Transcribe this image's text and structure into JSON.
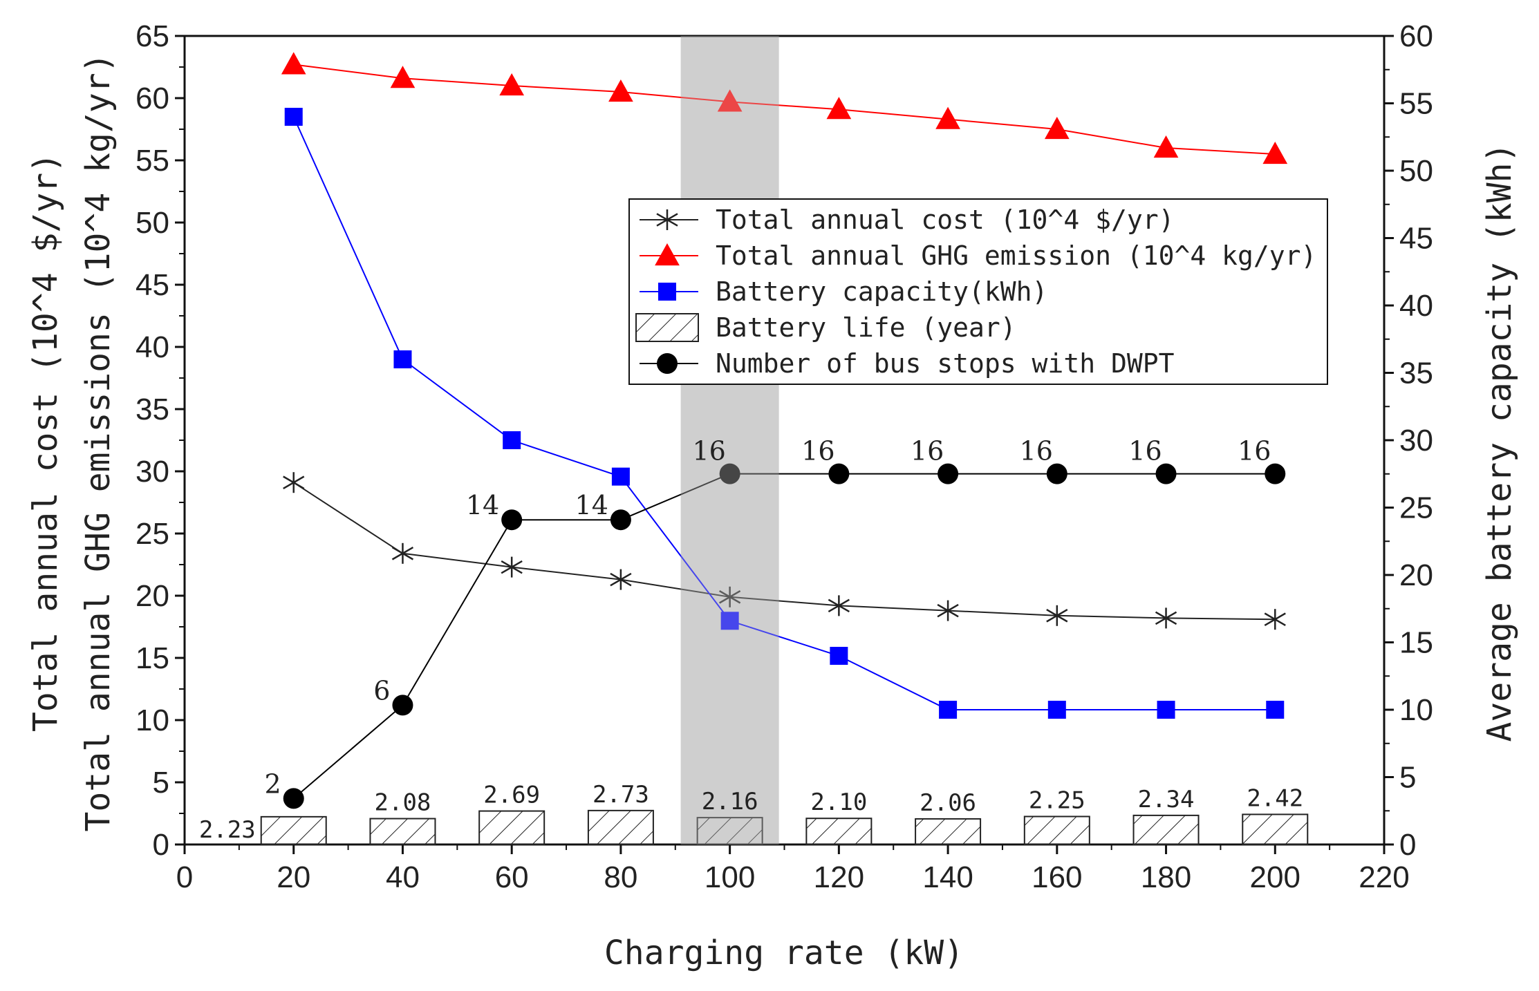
{
  "chart_data": {
    "type": "line",
    "x": [
      20,
      40,
      60,
      80,
      100,
      120,
      140,
      160,
      180,
      200
    ],
    "xlabel": "Charging rate (kW)",
    "xlim": [
      0,
      220
    ],
    "x_ticks": [
      0,
      20,
      40,
      60,
      80,
      100,
      120,
      140,
      160,
      180,
      200,
      220
    ],
    "ylabel_left_1": "Total annual cost (10^4 $/yr)",
    "ylabel_left_2": "Total annual GHG emissions (10^4 kg/yr)",
    "ylim_left": [
      0,
      65
    ],
    "y_ticks_left": [
      0,
      5,
      10,
      15,
      20,
      25,
      30,
      35,
      40,
      45,
      50,
      55,
      60,
      65
    ],
    "ylabel_right": "Average battery capacity (kWh)",
    "ylim_right": [
      0,
      60
    ],
    "y_ticks_right": [
      0,
      5,
      10,
      15,
      20,
      25,
      30,
      35,
      40,
      45,
      50,
      55,
      60
    ],
    "highlight_band": {
      "x_from": 91,
      "x_to": 109,
      "color": "#d3d3d3"
    },
    "series": [
      {
        "id": "cost",
        "name": "Total annual cost (10^4 $/yr)",
        "axis": "left",
        "marker": "asterisk",
        "color": "#222222",
        "values": [
          29.1,
          23.4,
          22.3,
          21.3,
          19.9,
          19.2,
          18.8,
          18.4,
          18.2,
          18.1
        ]
      },
      {
        "id": "ghg",
        "name": "Total annual GHG emission (10^4 kg/yr)",
        "axis": "left",
        "marker": "triangle",
        "color": "#ff0000",
        "values": [
          62.7,
          61.6,
          61.0,
          60.5,
          59.7,
          59.1,
          58.3,
          57.5,
          56.0,
          55.5
        ]
      },
      {
        "id": "battery",
        "name": "Battery capacity(kWh)",
        "axis": "right",
        "marker": "square",
        "color": "#0000ff",
        "values": [
          54.0,
          36.0,
          30.0,
          27.3,
          16.6,
          14.0,
          10.0,
          10.0,
          10.0,
          10.0
        ]
      },
      {
        "id": "stops",
        "name": "Number of bus stops with DWPT",
        "axis": "left",
        "marker": "circle",
        "color": "#000000",
        "y_positions": [
          3.7,
          11.2,
          26.1,
          26.1,
          29.8,
          29.8,
          29.8,
          29.8,
          29.8,
          29.8
        ],
        "labels": [
          "2",
          "6",
          "14",
          "14",
          "16",
          "16",
          "16",
          "16",
          "16",
          "16"
        ]
      },
      {
        "id": "life",
        "name": "Battery life (year)",
        "axis": "left",
        "marker": "hatched-bar",
        "color": "#222222",
        "values": [
          2.23,
          2.08,
          2.69,
          2.73,
          2.16,
          2.1,
          2.06,
          2.25,
          2.34,
          2.42
        ],
        "labels": [
          "2.23",
          "2.08",
          "2.69",
          "2.73",
          "2.16",
          "2.10",
          "2.06",
          "2.25",
          "2.34",
          "2.42"
        ]
      }
    ],
    "legend": {
      "position": "upper-center",
      "entries": [
        "Total annual cost (10^4 $/yr)",
        "Total annual GHG emission (10^4 kg/yr)",
        "Battery capacity(kWh)",
        "Battery life (year)",
        "Number of bus stops with DWPT"
      ]
    }
  }
}
